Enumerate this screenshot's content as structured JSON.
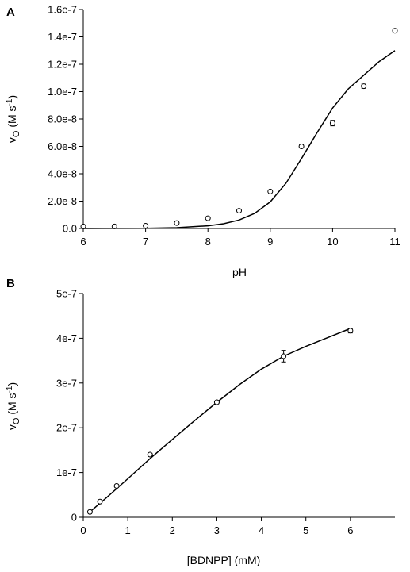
{
  "chart_data": [
    {
      "type": "scatter",
      "panel_label": "A",
      "xlabel": "pH",
      "ylabel": {
        "main": "v",
        "sub": "O",
        "unit_open": " (M s",
        "sup": "-1",
        "unit_close": ")"
      },
      "xlim": [
        6,
        11
      ],
      "ylim": [
        0,
        1.6e-07
      ],
      "xticks": [
        "6",
        "7",
        "8",
        "9",
        "10",
        "11"
      ],
      "xtick_values": [
        6,
        7,
        8,
        9,
        10,
        11
      ],
      "yticks": [
        "0.0",
        "2.0e-8",
        "4.0e-8",
        "6.0e-8",
        "8.0e-8",
        "1.0e-7",
        "1.2e-7",
        "1.4e-7",
        "1.6e-7"
      ],
      "ytick_values": [
        0,
        2e-08,
        4e-08,
        6e-08,
        8e-08,
        1e-07,
        1.2e-07,
        1.4e-07,
        1.6e-07
      ],
      "points": {
        "x": [
          6.0,
          6.5,
          7.0,
          7.5,
          8.0,
          8.5,
          9.0,
          9.5,
          10.0,
          10.5,
          11.0
        ],
        "y": [
          1.5e-09,
          1.5e-09,
          2e-09,
          4e-09,
          7.5e-09,
          1.3e-08,
          2.7e-08,
          6e-08,
          7.7e-08,
          1.04e-07,
          1.445e-07
        ],
        "err": [
          0,
          0,
          0,
          0,
          0,
          0,
          0,
          1e-09,
          2e-09,
          1.5e-09,
          0
        ]
      },
      "fit_line": {
        "x": [
          6.0,
          7.0,
          7.5,
          8.0,
          8.25,
          8.5,
          8.75,
          9.0,
          9.25,
          9.5,
          9.75,
          10.0,
          10.25,
          10.5,
          10.75,
          11.0
        ],
        "y": [
          0,
          2e-10,
          6e-10,
          2e-09,
          3.5e-09,
          6.2e-09,
          1.1e-08,
          1.95e-08,
          3.3e-08,
          5.1e-08,
          7e-08,
          8.8e-08,
          1.02e-07,
          1.12e-07,
          1.22e-07,
          1.3e-07
        ]
      },
      "grid": false,
      "legend": "none"
    },
    {
      "type": "scatter",
      "panel_label": "B",
      "xlabel": "[BDNPP] (mM)",
      "ylabel": {
        "main": "v",
        "sub": "O",
        "unit_open": " (M s",
        "sup": "-1",
        "unit_close": ")"
      },
      "xlim": [
        0,
        7
      ],
      "ylim": [
        0,
        5e-07
      ],
      "xticks": [
        "0",
        "1",
        "2",
        "3",
        "4",
        "5",
        "6"
      ],
      "xtick_values": [
        0,
        1,
        2,
        3,
        4,
        5,
        6
      ],
      "yticks": [
        "0",
        "1e-7",
        "2e-7",
        "3e-7",
        "4e-7",
        "5e-7"
      ],
      "ytick_values": [
        0,
        1e-07,
        2e-07,
        3e-07,
        4e-07,
        5e-07
      ],
      "points": {
        "x": [
          0.15,
          0.375,
          0.75,
          1.5,
          3.0,
          4.5,
          6.0
        ],
        "y": [
          1.2e-08,
          3.5e-08,
          7e-08,
          1.4e-07,
          2.57e-07,
          3.6e-07,
          4.17e-07
        ],
        "err": [
          0,
          0,
          0,
          3e-09,
          3e-09,
          1.3e-08,
          5e-09
        ]
      },
      "fit_line": {
        "x": [
          0.15,
          0.5,
          1.0,
          1.5,
          2.0,
          2.5,
          3.0,
          3.5,
          4.0,
          4.5,
          5.0,
          5.5,
          6.0
        ],
        "y": [
          1.2e-08,
          4.2e-08,
          8.6e-08,
          1.31e-07,
          1.74e-07,
          2.16e-07,
          2.57e-07,
          2.96e-07,
          3.31e-07,
          3.6e-07,
          3.82e-07,
          4.02e-07,
          4.22e-07
        ]
      },
      "grid": false,
      "legend": "none"
    }
  ]
}
